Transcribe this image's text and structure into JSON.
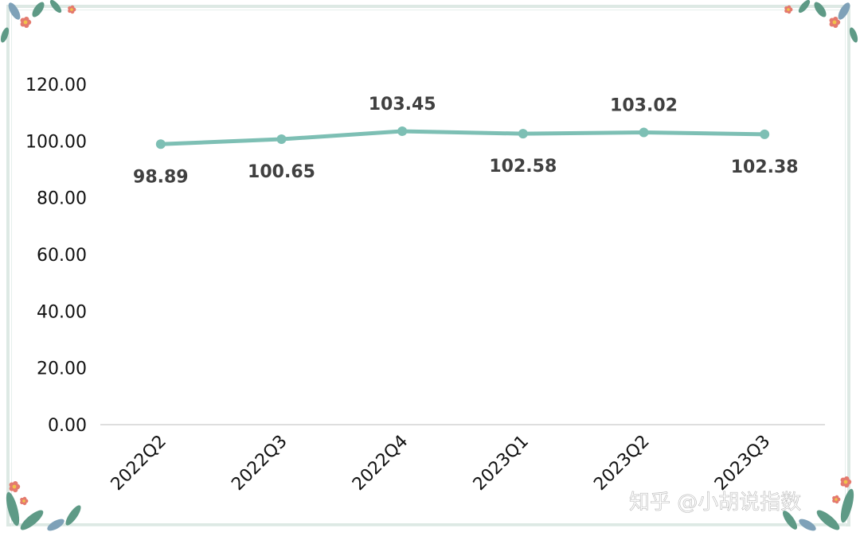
{
  "chart_data": {
    "type": "line",
    "categories": [
      "2022Q2",
      "2022Q3",
      "2022Q4",
      "2023Q1",
      "2023Q2",
      "2023Q3"
    ],
    "series": [
      {
        "values": [
          98.89,
          100.65,
          103.45,
          102.58,
          103.02,
          102.38
        ]
      }
    ],
    "data_labels": [
      "98.89",
      "100.65",
      "103.45",
      "102.58",
      "103.02",
      "102.38"
    ],
    "y_ticks": [
      "0.00",
      "20.00",
      "40.00",
      "60.00",
      "80.00",
      "100.00",
      "120.00"
    ],
    "ylim": [
      0,
      120
    ],
    "grid": false,
    "legend": "none",
    "line_color": "#7dbfb4",
    "title": "",
    "xlabel": "",
    "ylabel": ""
  },
  "watermark": "知乎 @小胡说指数",
  "decoration": {
    "frame_color": "#dde9e4",
    "leaf_color": "#5e9a86",
    "flower_color": "#e47a6e",
    "flower_center": "#f1c24a",
    "leaf_color_blue": "#7ea1b8"
  }
}
